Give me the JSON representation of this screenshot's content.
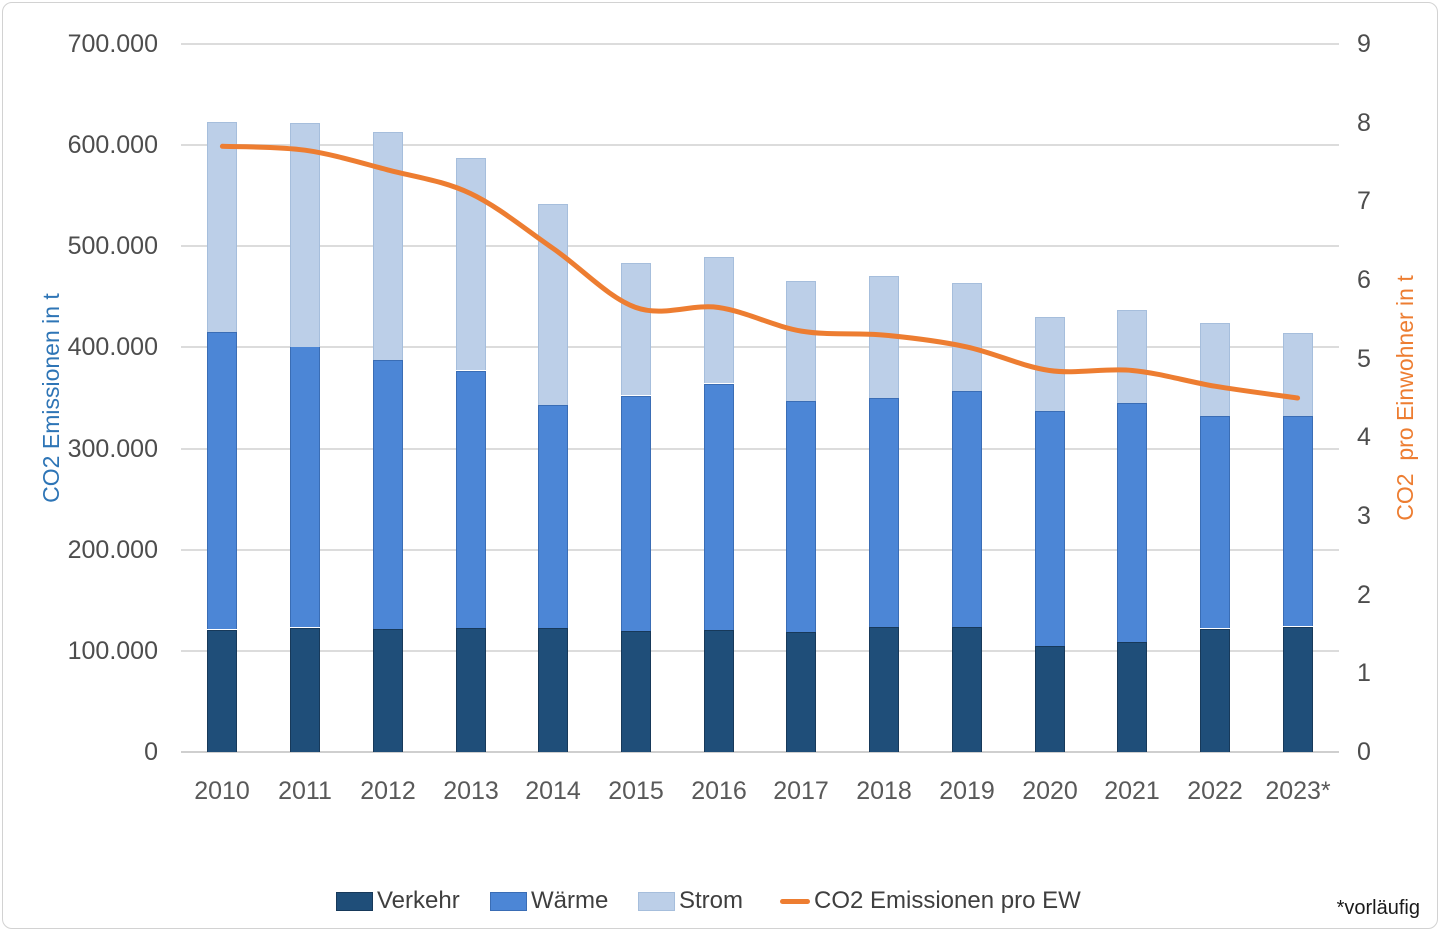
{
  "chart_data": {
    "type": "bar",
    "subtype": "stacked-bars-with-line",
    "categories": [
      "2010",
      "2011",
      "2012",
      "2013",
      "2014",
      "2015",
      "2016",
      "2017",
      "2018",
      "2019",
      "2020",
      "2021",
      "2022",
      "2023*"
    ],
    "bar_series": [
      {
        "name": "Verkehr",
        "color": "#1F4E79",
        "border": "#17395A",
        "values": [
          121000,
          123000,
          122000,
          123000,
          123000,
          120000,
          121000,
          119000,
          124000,
          124000,
          105000,
          109000,
          122000,
          124000
        ]
      },
      {
        "name": "Wärme",
        "color": "#4C86D6",
        "border": "#3A6DB5",
        "values": [
          294000,
          278000,
          266000,
          254000,
          220000,
          232000,
          243000,
          228000,
          226000,
          233000,
          232000,
          236000,
          210000,
          208000
        ]
      },
      {
        "name": "Strom",
        "color": "#BCCFE8",
        "border": "#A6BEDC",
        "values": [
          208000,
          221000,
          225000,
          210000,
          199000,
          131000,
          125000,
          119000,
          121000,
          107000,
          93000,
          92000,
          92000,
          82000
        ]
      }
    ],
    "line_series": {
      "name": "CO2 Emissionen pro EW",
      "color": "#ED7D31",
      "values": [
        7.7,
        7.65,
        7.4,
        7.1,
        6.4,
        5.65,
        5.65,
        5.35,
        5.3,
        5.15,
        4.85,
        4.85,
        4.65,
        4.5
      ]
    },
    "left_axis": {
      "title": "CO2 Emissionen in t",
      "color": "#2E75B6",
      "max": 700000,
      "tick_step": 100000,
      "tick_labels": [
        "0",
        "100.000",
        "200.000",
        "300.000",
        "400.000",
        "500.000",
        "600.000",
        "700.000"
      ]
    },
    "right_axis": {
      "title": "CO2  pro Einwohner in t",
      "color": "#ED7D31",
      "max": 9,
      "tick_step": 1,
      "tick_labels": [
        "0",
        "1",
        "2",
        "3",
        "4",
        "5",
        "6",
        "7",
        "8",
        "9"
      ]
    },
    "grid": true,
    "legend_position": "bottom",
    "note": "*vorläufig"
  }
}
